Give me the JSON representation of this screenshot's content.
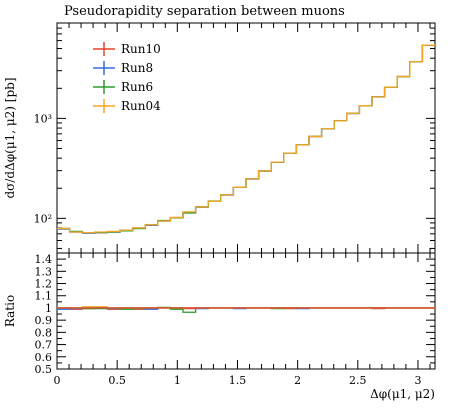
{
  "chart_data": {
    "type": "line",
    "title": "Pseudorapidity separation between muons",
    "xlabel": "Δφ(μ1, μ2)",
    "ylabel": "dσ/dΔφ(μ1, μ2) [pb]",
    "ratio_ylabel": "Ratio",
    "xlim": [
      0,
      3.14159
    ],
    "ylim": [
      45,
      9000
    ],
    "yscale": "log",
    "ratio_ylim": [
      0.5,
      1.45
    ],
    "legend_position": "top-left",
    "grid": false,
    "x_ticks": [
      {
        "value": 0,
        "label": "0"
      },
      {
        "value": 0.5,
        "label": "0.5"
      },
      {
        "value": 1,
        "label": "1"
      },
      {
        "value": 1.5,
        "label": "1.5"
      },
      {
        "value": 2,
        "label": "2"
      },
      {
        "value": 2.5,
        "label": "2.5"
      },
      {
        "value": 3,
        "label": "3"
      }
    ],
    "y_ticks": [
      {
        "value": 100,
        "label": "10²"
      },
      {
        "value": 1000,
        "label": "10³"
      }
    ],
    "ratio_ticks": [
      {
        "value": 0.5,
        "label": "0.5"
      },
      {
        "value": 0.6,
        "label": "0.6"
      },
      {
        "value": 0.7,
        "label": "0.7"
      },
      {
        "value": 0.8,
        "label": "0.8"
      },
      {
        "value": 0.9,
        "label": "0.9"
      },
      {
        "value": 1.0,
        "label": "1"
      },
      {
        "value": 1.1,
        "label": "1.1"
      },
      {
        "value": 1.2,
        "label": "1.2"
      },
      {
        "value": 1.3,
        "label": "1.3"
      },
      {
        "value": 1.4,
        "label": "1.4"
      }
    ],
    "bin_edges": [
      0,
      0.1047,
      0.2094,
      0.3142,
      0.4189,
      0.5236,
      0.6283,
      0.733,
      0.8378,
      0.9425,
      1.0472,
      1.1519,
      1.2566,
      1.3614,
      1.4661,
      1.5708,
      1.6755,
      1.7802,
      1.885,
      1.9897,
      2.0944,
      2.1991,
      2.3038,
      2.4086,
      2.5133,
      2.618,
      2.7227,
      2.8274,
      2.9322,
      3.0369,
      3.1416
    ],
    "series": [
      {
        "name": "Run10",
        "color": "#e8412a",
        "values": [
          79,
          73,
          72,
          72,
          73,
          76,
          80,
          86,
          94,
          102,
          115,
          130,
          148,
          172,
          205,
          248,
          298,
          365,
          448,
          545,
          660,
          790,
          945,
          1120,
          1340,
          1640,
          2050,
          2620,
          3700,
          5400
        ],
        "ratio": [
          1.0,
          0.99,
          0.995,
          1.0,
          0.99,
          1.0,
          0.99,
          1.0,
          1.0,
          1.0,
          0.995,
          1.0,
          1.0,
          1.0,
          1.0,
          1.0,
          1.0,
          1.0,
          0.995,
          1.0,
          1.0,
          1.0,
          1.0,
          1.0,
          1.0,
          0.995,
          1.0,
          1.0,
          1.0,
          1.0
        ]
      },
      {
        "name": "Run8",
        "color": "#3568e0",
        "values": [
          78,
          73,
          71,
          72,
          73,
          76,
          80,
          85,
          94,
          101,
          114,
          129,
          148,
          171,
          204,
          247,
          297,
          364,
          447,
          544,
          659,
          789,
          944,
          1119,
          1339,
          1639,
          2049,
          2619,
          3699,
          5399
        ],
        "ratio": [
          0.99,
          0.995,
          1.0,
          1.005,
          0.995,
          1.0,
          1.0,
          0.99,
          1.0,
          1.0,
          1.0,
          0.995,
          1.0,
          1.0,
          0.995,
          1.0,
          1.0,
          1.0,
          1.0,
          0.995,
          1.0,
          1.0,
          1.0,
          1.0,
          1.0,
          1.0,
          1.0,
          1.0,
          1.0,
          1.0
        ]
      },
      {
        "name": "Run6",
        "color": "#2e9a2e",
        "values": [
          79,
          74,
          72,
          72,
          73,
          75,
          79,
          86,
          95,
          101,
          113,
          130,
          149,
          172,
          205,
          248,
          298,
          365,
          448,
          545,
          660,
          790,
          945,
          1120,
          1340,
          1640,
          2050,
          2620,
          3700,
          5400
        ],
        "ratio": [
          1.0,
          1.0,
          0.995,
          0.995,
          1.0,
          0.99,
          0.995,
          1.0,
          1.005,
          0.99,
          0.965,
          1.0,
          1.0,
          1.0,
          1.0,
          1.0,
          1.0,
          0.995,
          1.0,
          1.0,
          1.0,
          1.0,
          1.0,
          1.0,
          1.0,
          1.0,
          1.0,
          1.0,
          1.0,
          1.0
        ]
      },
      {
        "name": "Run04",
        "color": "#f5a623",
        "values": [
          79,
          73,
          72,
          73,
          74,
          76,
          80,
          86,
          94,
          102,
          116,
          130,
          148,
          172,
          205,
          248,
          298,
          365,
          448,
          545,
          660,
          790,
          945,
          1120,
          1340,
          1640,
          2050,
          2620,
          3700,
          5400
        ],
        "ratio": [
          1.0,
          1.0,
          1.01,
          1.01,
          1.0,
          1.0,
          1.0,
          1.0,
          1.0,
          1.0,
          1.0,
          1.0,
          1.0,
          1.0,
          1.0,
          1.0,
          1.0,
          1.0,
          1.0,
          1.0,
          1.0,
          1.0,
          1.0,
          1.0,
          1.0,
          1.0,
          1.0,
          1.0,
          1.0,
          1.0
        ]
      }
    ]
  }
}
